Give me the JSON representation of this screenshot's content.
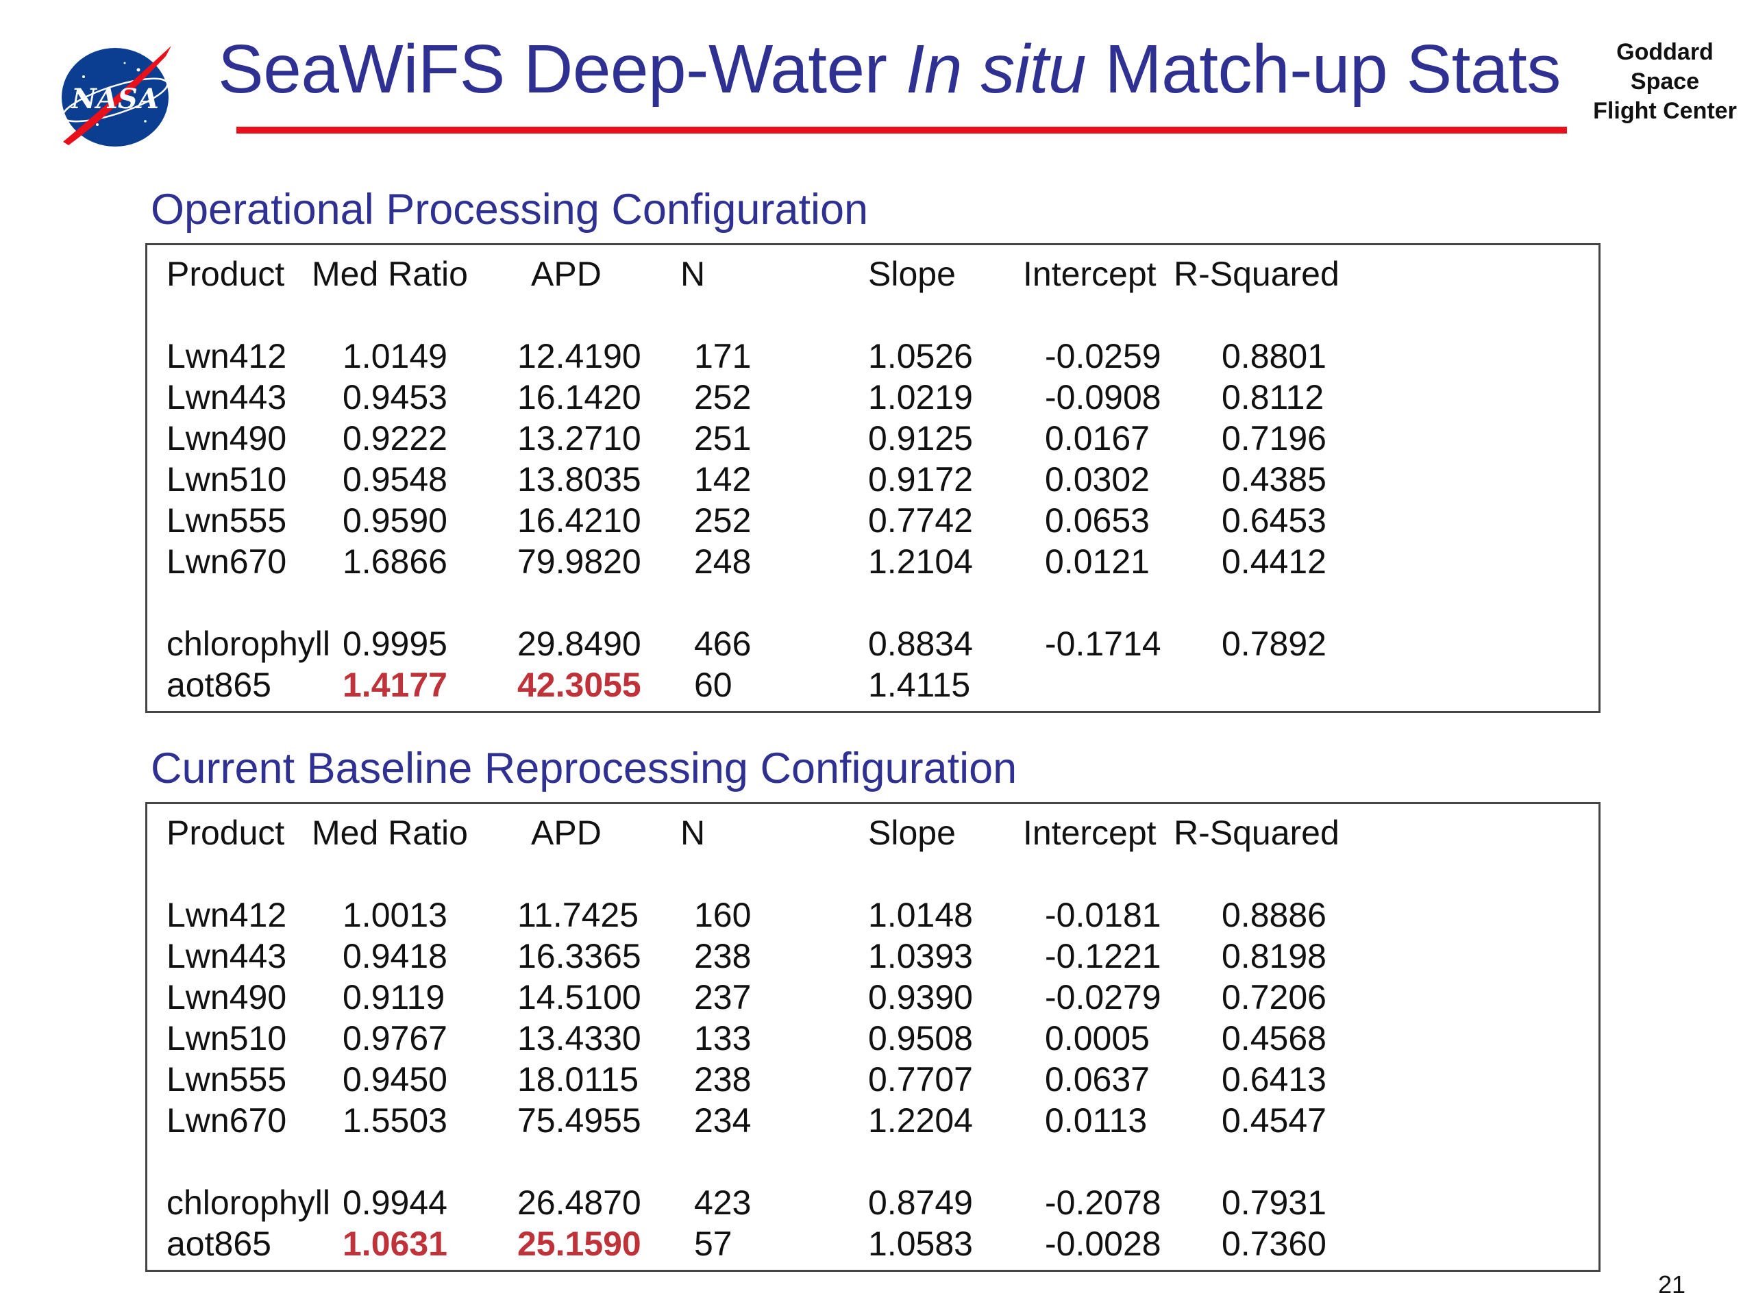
{
  "header": {
    "title_part1": "SeaWiFS Deep-Water ",
    "title_italic": "In situ",
    "title_part2": " Match-up Stats",
    "logo_text": "NASA",
    "org_line1": "Goddard",
    "org_line2": "Space",
    "org_line3": "Flight Center"
  },
  "colors": {
    "title_blue": "#2e3192",
    "rule_red": "#e8101a",
    "highlight_red": "#c0323a"
  },
  "tables": [
    {
      "title": "Operational Processing Configuration",
      "columns": [
        "Product",
        "Med Ratio",
        "APD",
        "N",
        "Slope",
        "Intercept",
        "R-Squared"
      ],
      "rows": [
        [
          "Lwn412",
          "1.0149",
          "12.4190",
          "171",
          "1.0526",
          "-0.0259",
          "0.8801"
        ],
        [
          "Lwn443",
          "0.9453",
          "16.1420",
          "252",
          "1.0219",
          "-0.0908",
          "0.8112"
        ],
        [
          "Lwn490",
          "0.9222",
          "13.2710",
          "251",
          "0.9125",
          "0.0167",
          "0.7196"
        ],
        [
          "Lwn510",
          "0.9548",
          "13.8035",
          "142",
          "0.9172",
          "0.0302",
          "0.4385"
        ],
        [
          "Lwn555",
          "0.9590",
          "16.4210",
          "252",
          "0.7742",
          "0.0653",
          "0.6453"
        ],
        [
          "Lwn670",
          "1.6866",
          "79.9820",
          "248",
          "1.2104",
          "0.0121",
          "0.4412"
        ],
        [
          "chlorophyll",
          "0.9995",
          "29.8490",
          "466",
          "0.8834",
          "-0.1714",
          "0.7892"
        ],
        [
          "aot865",
          "1.4177",
          "42.3055",
          "60",
          "1.4115",
          "",
          ""
        ]
      ],
      "highlighted": [
        [
          7,
          1
        ],
        [
          7,
          2
        ]
      ]
    },
    {
      "title": "Current Baseline Reprocessing Configuration",
      "columns": [
        "Product",
        "Med Ratio",
        "APD",
        "N",
        "Slope",
        "Intercept",
        "R-Squared"
      ],
      "rows": [
        [
          "Lwn412",
          "1.0013",
          "11.7425",
          "160",
          "1.0148",
          "-0.0181",
          "0.8886"
        ],
        [
          "Lwn443",
          "0.9418",
          "16.3365",
          "238",
          "1.0393",
          "-0.1221",
          "0.8198"
        ],
        [
          "Lwn490",
          "0.9119",
          "14.5100",
          "237",
          "0.9390",
          "-0.0279",
          "0.7206"
        ],
        [
          "Lwn510",
          "0.9767",
          "13.4330",
          "133",
          "0.9508",
          "0.0005",
          "0.4568"
        ],
        [
          "Lwn555",
          "0.9450",
          "18.0115",
          "238",
          "0.7707",
          "0.0637",
          "0.6413"
        ],
        [
          "Lwn670",
          "1.5503",
          "75.4955",
          "234",
          "1.2204",
          "0.0113",
          "0.4547"
        ],
        [
          "chlorophyll",
          "0.9944",
          "26.4870",
          "423",
          "0.8749",
          "-0.2078",
          "0.7931"
        ],
        [
          "aot865",
          "1.0631",
          "25.1590",
          "57",
          "1.0583",
          "-0.0028",
          "0.7360"
        ]
      ],
      "highlighted": [
        [
          7,
          1
        ],
        [
          7,
          2
        ]
      ]
    }
  ],
  "page_number": "21"
}
